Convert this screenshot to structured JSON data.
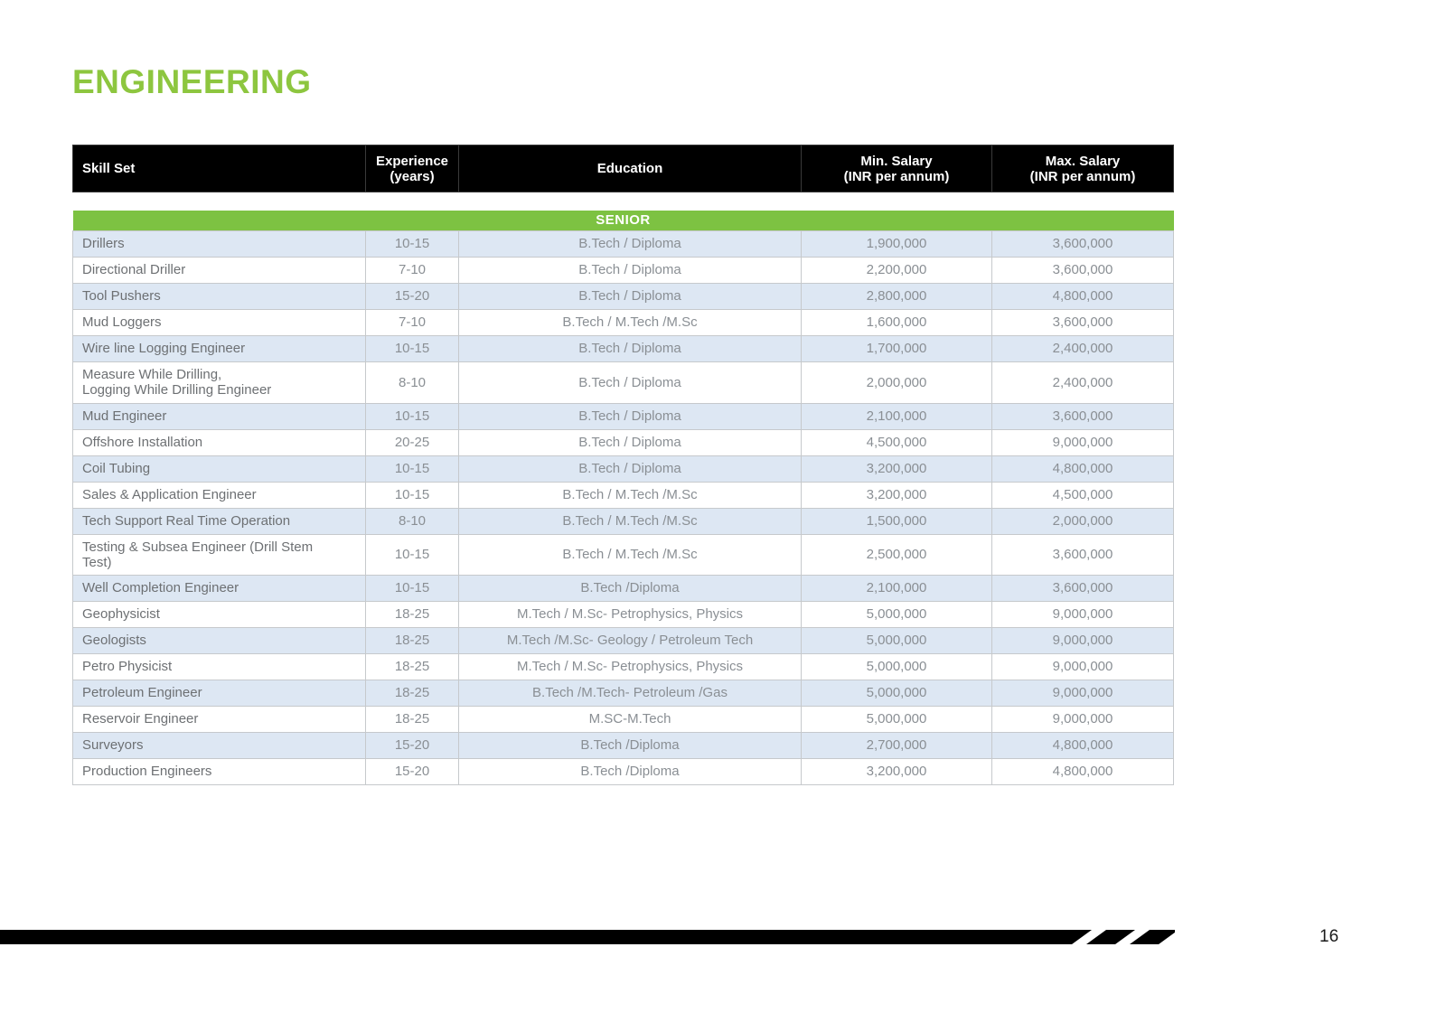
{
  "page": {
    "title": "ENGINEERING"
  },
  "colors": {
    "accent_green": "#8dc63f",
    "section_green": "#7dc242",
    "row_shade": "#dde7f3",
    "header_bg": "#000000",
    "cell_text": "#8a8f94"
  },
  "table": {
    "columns": [
      "Skill Set",
      "Experience\n(years)",
      "Education",
      "Min. Salary\n(INR per annum)",
      "Max. Salary\n(INR per annum)"
    ],
    "section_label": "SENIOR",
    "rows": [
      [
        "Drillers",
        "10-15",
        "B.Tech / Diploma",
        "1,900,000",
        "3,600,000"
      ],
      [
        "Directional Driller",
        "7-10",
        "B.Tech / Diploma",
        "2,200,000",
        "3,600,000"
      ],
      [
        "Tool Pushers",
        "15-20",
        "B.Tech / Diploma",
        "2,800,000",
        "4,800,000"
      ],
      [
        "Mud Loggers",
        "7-10",
        "B.Tech / M.Tech /M.Sc",
        "1,600,000",
        "3,600,000"
      ],
      [
        "Wire line Logging Engineer",
        "10-15",
        "B.Tech / Diploma",
        "1,700,000",
        "2,400,000"
      ],
      [
        "Measure While Drilling,\nLogging While Drilling Engineer",
        "8-10",
        "B.Tech / Diploma",
        "2,000,000",
        "2,400,000"
      ],
      [
        "Mud Engineer",
        "10-15",
        "B.Tech / Diploma",
        "2,100,000",
        "3,600,000"
      ],
      [
        "Offshore Installation",
        "20-25",
        "B.Tech / Diploma",
        "4,500,000",
        "9,000,000"
      ],
      [
        "Coil Tubing",
        "10-15",
        "B.Tech / Diploma",
        "3,200,000",
        "4,800,000"
      ],
      [
        "Sales & Application Engineer",
        "10-15",
        "B.Tech / M.Tech /M.Sc",
        "3,200,000",
        "4,500,000"
      ],
      [
        "Tech Support Real Time Operation",
        "8-10",
        "B.Tech / M.Tech /M.Sc",
        "1,500,000",
        "2,000,000"
      ],
      [
        "Testing & Subsea Engineer (Drill Stem\nTest)",
        "10-15",
        "B.Tech / M.Tech /M.Sc",
        "2,500,000",
        "3,600,000"
      ],
      [
        "Well Completion Engineer",
        "10-15",
        "B.Tech /Diploma",
        "2,100,000",
        "3,600,000"
      ],
      [
        "Geophysicist",
        "18-25",
        "M.Tech / M.Sc- Petrophysics, Physics",
        "5,000,000",
        "9,000,000"
      ],
      [
        "Geologists",
        "18-25",
        "M.Tech /M.Sc- Geology / Petroleum Tech",
        "5,000,000",
        "9,000,000"
      ],
      [
        "Petro Physicist",
        "18-25",
        "M.Tech / M.Sc- Petrophysics, Physics",
        "5,000,000",
        "9,000,000"
      ],
      [
        "Petroleum Engineer",
        "18-25",
        "B.Tech /M.Tech- Petroleum /Gas",
        "5,000,000",
        "9,000,000"
      ],
      [
        "Reservoir Engineer",
        "18-25",
        "M.SC-M.Tech",
        "5,000,000",
        "9,000,000"
      ],
      [
        "Surveyors",
        "15-20",
        "B.Tech /Diploma",
        "2,700,000",
        "4,800,000"
      ],
      [
        "Production Engineers",
        "15-20",
        "B.Tech /Diploma",
        "3,200,000",
        "4,800,000"
      ]
    ]
  },
  "footer": {
    "page_number": "16"
  }
}
